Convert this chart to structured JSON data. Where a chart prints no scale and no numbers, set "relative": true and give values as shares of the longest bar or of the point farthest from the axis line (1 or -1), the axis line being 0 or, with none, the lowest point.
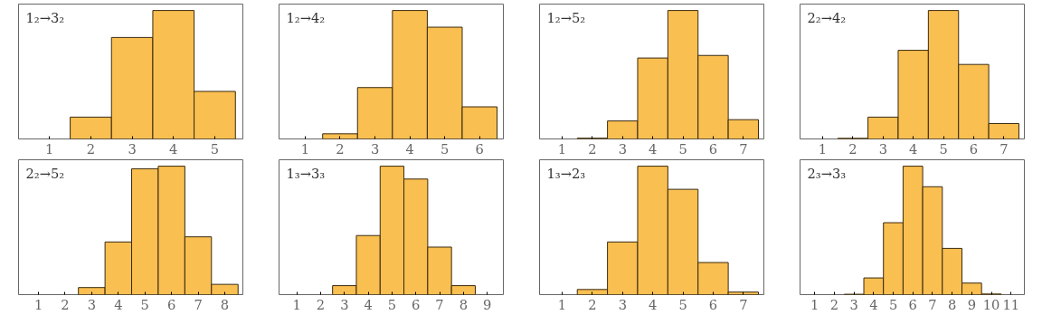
{
  "chart_data": [
    {
      "type": "bar",
      "title": "1₂→3₂",
      "relative": true,
      "color": "#f9bf50",
      "categories": [
        "1",
        "2",
        "3",
        "4",
        "5"
      ],
      "values": [
        null,
        0.17,
        0.79,
        1.0,
        0.37
      ],
      "grid": false
    },
    {
      "type": "bar",
      "title": "1₂→4₂",
      "relative": true,
      "color": "#f9bf50",
      "categories": [
        "1",
        "2",
        "3",
        "4",
        "5",
        "6"
      ],
      "values": [
        null,
        0.04,
        0.4,
        1.0,
        0.87,
        0.25
      ],
      "grid": false
    },
    {
      "type": "bar",
      "title": "1₂→5₂",
      "relative": true,
      "color": "#f9bf50",
      "categories": [
        "1",
        "2",
        "3",
        "4",
        "5",
        "6",
        "7"
      ],
      "values": [
        null,
        0.006,
        0.14,
        0.63,
        1.0,
        0.65,
        0.15
      ],
      "grid": false
    },
    {
      "type": "bar",
      "title": "2₂→4₂",
      "relative": true,
      "color": "#f9bf50",
      "categories": [
        "1",
        "2",
        "3",
        "4",
        "5",
        "6",
        "7"
      ],
      "values": [
        null,
        0.005,
        0.17,
        0.69,
        1.0,
        0.58,
        0.12
      ],
      "grid": false
    },
    {
      "type": "bar",
      "title": "2₂→5₂",
      "relative": true,
      "color": "#f9bf50",
      "categories": [
        "1",
        "2",
        "3",
        "4",
        "5",
        "6",
        "7",
        "8"
      ],
      "values": [
        null,
        null,
        0.055,
        0.41,
        0.98,
        1.0,
        0.45,
        0.08
      ],
      "grid": false
    },
    {
      "type": "bar",
      "title": "1₃→3₃",
      "relative": true,
      "color": "#f9bf50",
      "categories": [
        "1",
        "2",
        "3",
        "4",
        "5",
        "6",
        "7",
        "8",
        "9"
      ],
      "values": [
        null,
        null,
        0.07,
        0.46,
        1.0,
        0.9,
        0.37,
        0.07,
        null
      ],
      "grid": false
    },
    {
      "type": "bar",
      "title": "1₃→2₃",
      "relative": true,
      "color": "#f9bf50",
      "categories": [
        "1",
        "2",
        "3",
        "4",
        "5",
        "6",
        "7"
      ],
      "values": [
        null,
        0.04,
        0.41,
        1.0,
        0.82,
        0.25,
        0.02
      ],
      "grid": false
    },
    {
      "type": "bar",
      "title": "2₃→3₃",
      "relative": true,
      "color": "#f9bf50",
      "categories": [
        "1",
        "2",
        "3",
        "4",
        "5",
        "6",
        "7",
        "8",
        "9",
        "10",
        "11"
      ],
      "values": [
        null,
        null,
        0.003,
        0.13,
        0.56,
        1.0,
        0.84,
        0.36,
        0.09,
        0.005,
        null
      ],
      "grid": false
    }
  ]
}
